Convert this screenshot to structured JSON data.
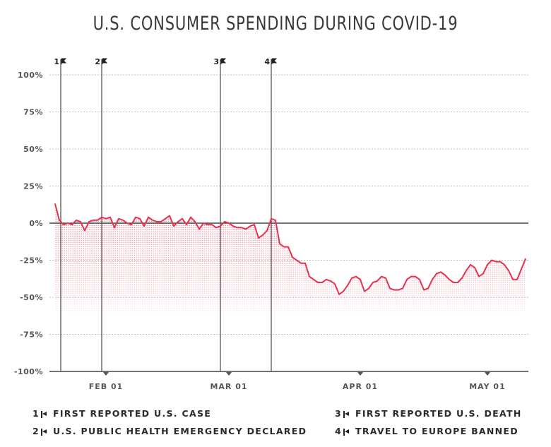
{
  "chart_data": {
    "type": "line",
    "title": "U.S. CONSUMER SPENDING DURING COVID-19",
    "yticks": [
      "100%",
      "75%",
      "50%",
      "25%",
      "0%",
      "-25%",
      "-50%",
      "-75%",
      "-100%"
    ],
    "ylim": [
      -100,
      100
    ],
    "xticks": [
      "FEB 01",
      "MAR 01",
      "APR 01",
      "MAY 01"
    ],
    "x_start": "JAN 20",
    "series": [
      {
        "values": [
          13,
          2,
          -1,
          0,
          -1,
          2,
          1,
          -5,
          1,
          2,
          2,
          4,
          3,
          4,
          -3,
          3,
          2,
          0,
          -1,
          4,
          3,
          -2,
          4,
          2,
          1,
          1,
          3,
          5,
          -2,
          1,
          3,
          -1,
          4,
          1,
          -4,
          0,
          -1,
          -1,
          -3,
          -2,
          1,
          0,
          -2,
          -3,
          -3,
          -4,
          -2,
          -1,
          -10,
          -8,
          -5,
          3,
          2,
          -14,
          -16,
          -16,
          -23,
          -25,
          -27,
          -27,
          -36,
          -38,
          -40,
          -40,
          -38,
          -39,
          -41,
          -48,
          -46,
          -42,
          -37,
          -36,
          -38,
          -46,
          -44,
          -40,
          -39,
          -36,
          -37,
          -44,
          -45,
          -45,
          -44,
          -38,
          -36,
          -36,
          -38,
          -45,
          -44,
          -38,
          -34,
          -33,
          -35,
          -38,
          -40,
          -40,
          -37,
          -32,
          -28,
          -30,
          -36,
          -34,
          -28,
          -25,
          -26,
          -26,
          -28,
          -32,
          -38,
          -38,
          -31,
          -24
        ]
      }
    ],
    "events": [
      {
        "num": "1",
        "label": "FIRST REPORTED U.S. CASE"
      },
      {
        "num": "2",
        "label": "U.S. PUBLIC HEALTH EMERGENCY DECLARED"
      },
      {
        "num": "3",
        "label": "FIRST REPORTED U.S. DEATH"
      },
      {
        "num": "4",
        "label": "TRAVEL TO EUROPE BANNED"
      }
    ],
    "colors": {
      "line": "#e8314f",
      "fill": "#f26a83",
      "grid": "#bfbfbf",
      "axis": "#222222",
      "event_line": "#555555"
    },
    "grid": true
  }
}
